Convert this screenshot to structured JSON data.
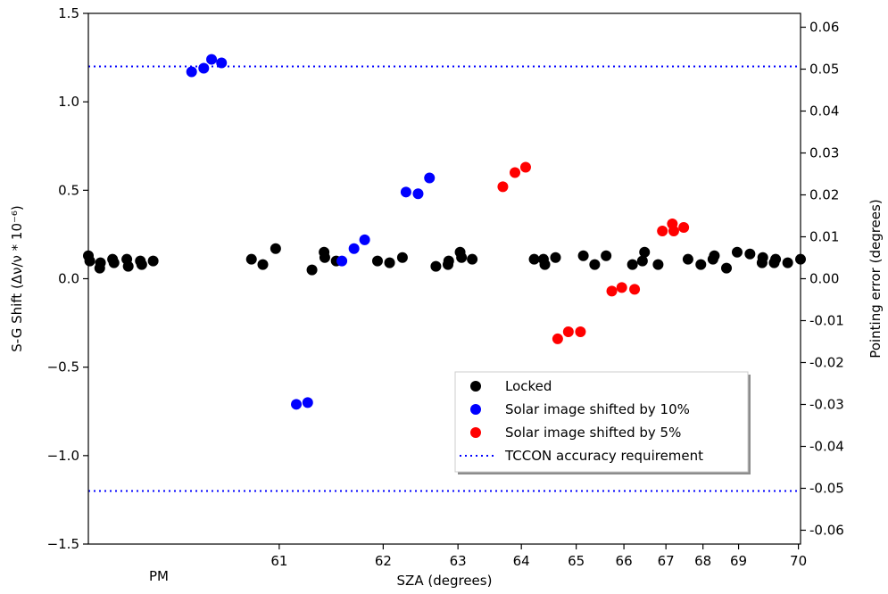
{
  "chart_data": {
    "type": "scatter",
    "xlabel": "SZA (degrees)",
    "x_extra_label": "PM",
    "ylabel_left": "S-G Shift (Δν/ν * 10⁻⁶)",
    "ylabel_right": "Pointing error (degrees)",
    "ylim_left": [
      -1.5,
      1.5
    ],
    "ylim_right": [
      -0.0633,
      0.0633
    ],
    "x_ticks": [
      "61",
      "62",
      "63",
      "64",
      "65",
      "66",
      "67",
      "68",
      "69",
      "70"
    ],
    "y_left_ticks": [
      "1.5",
      "1.0",
      "0.5",
      "0.0",
      "−0.5",
      "−1.0",
      "−1.5"
    ],
    "y_right_ticks": [
      "0.06",
      "0.05",
      "0.04",
      "0.03",
      "0.02",
      "0.01",
      "0.00",
      "-0.01",
      "-0.02",
      "-0.03",
      "-0.04",
      "-0.05",
      "-0.06"
    ],
    "note": "x axis is non-linear (PM time series); x values given as observation index 0-100 across the axis",
    "reference_lines": [
      {
        "name": "TCCON accuracy requirement",
        "y": [
          1.2,
          -1.2
        ],
        "color": "#0000ff",
        "style": "dotted"
      }
    ],
    "legend": {
      "position": "lower-right"
    },
    "series": [
      {
        "name": "Locked",
        "color": "#000000",
        "points": [
          [
            0.0,
            0.13
          ],
          [
            0.2,
            0.1
          ],
          [
            1.6,
            0.06
          ],
          [
            1.7,
            0.09
          ],
          [
            3.4,
            0.11
          ],
          [
            3.6,
            0.09
          ],
          [
            5.4,
            0.11
          ],
          [
            5.6,
            0.07
          ],
          [
            7.3,
            0.1
          ],
          [
            7.5,
            0.08
          ],
          [
            9.1,
            0.1
          ],
          [
            22.9,
            0.11
          ],
          [
            24.5,
            0.08
          ],
          [
            26.3,
            0.17
          ],
          [
            31.4,
            0.05
          ],
          [
            33.1,
            0.15
          ],
          [
            33.2,
            0.12
          ],
          [
            34.8,
            0.1
          ],
          [
            40.6,
            0.1
          ],
          [
            42.3,
            0.09
          ],
          [
            44.1,
            0.12
          ],
          [
            48.8,
            0.07
          ],
          [
            50.5,
            0.08
          ],
          [
            50.6,
            0.1
          ],
          [
            52.2,
            0.15
          ],
          [
            52.4,
            0.12
          ],
          [
            53.9,
            0.11
          ],
          [
            62.6,
            0.11
          ],
          [
            63.9,
            0.11
          ],
          [
            64.1,
            0.08
          ],
          [
            65.6,
            0.12
          ],
          [
            69.5,
            0.13
          ],
          [
            71.1,
            0.08
          ],
          [
            72.7,
            0.13
          ],
          [
            76.4,
            0.08
          ],
          [
            77.8,
            0.1
          ],
          [
            78.1,
            0.15
          ],
          [
            80.0,
            0.08
          ],
          [
            84.2,
            0.11
          ],
          [
            86.0,
            0.08
          ],
          [
            87.7,
            0.11
          ],
          [
            87.9,
            0.13
          ],
          [
            89.6,
            0.06
          ],
          [
            91.1,
            0.15
          ],
          [
            92.9,
            0.14
          ],
          [
            94.6,
            0.09
          ],
          [
            94.7,
            0.12
          ],
          [
            96.3,
            0.09
          ],
          [
            96.5,
            0.11
          ],
          [
            98.2,
            0.09
          ],
          [
            100.0,
            0.11
          ]
        ]
      },
      {
        "name": "Solar image shifted by 10%",
        "color": "#0000ff",
        "points": [
          [
            14.5,
            1.17
          ],
          [
            16.2,
            1.19
          ],
          [
            17.3,
            1.24
          ],
          [
            18.7,
            1.22
          ],
          [
            29.2,
            -0.71
          ],
          [
            30.8,
            -0.7
          ],
          [
            35.6,
            0.1
          ],
          [
            37.3,
            0.17
          ],
          [
            38.8,
            0.22
          ],
          [
            44.6,
            0.49
          ],
          [
            46.3,
            0.48
          ],
          [
            47.9,
            0.57
          ]
        ]
      },
      {
        "name": "Solar image shifted by 5%",
        "color": "#ff0000",
        "points": [
          [
            58.2,
            0.52
          ],
          [
            59.9,
            0.6
          ],
          [
            61.4,
            0.63
          ],
          [
            65.9,
            -0.34
          ],
          [
            67.4,
            -0.3
          ],
          [
            69.1,
            -0.3
          ],
          [
            73.5,
            -0.07
          ],
          [
            74.9,
            -0.05
          ],
          [
            76.7,
            -0.06
          ],
          [
            80.6,
            0.27
          ],
          [
            82.0,
            0.31
          ],
          [
            82.2,
            0.27
          ],
          [
            83.6,
            0.29
          ]
        ]
      }
    ]
  }
}
